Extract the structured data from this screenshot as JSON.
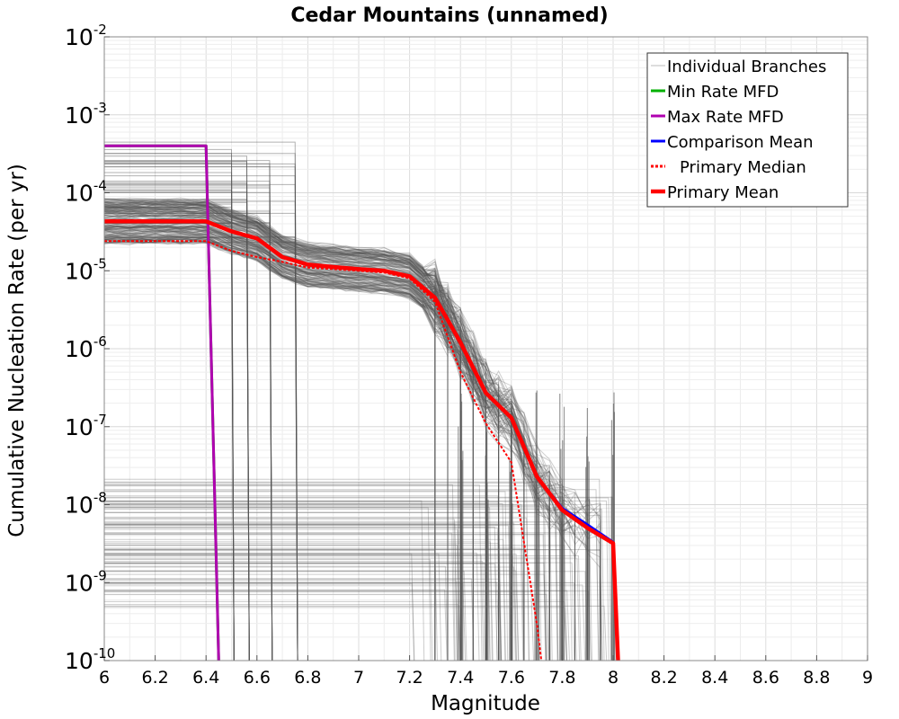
{
  "chart_data": {
    "type": "line",
    "title": "Cedar Mountains (unnamed)",
    "xlabel": "Magnitude",
    "ylabel": "Cumulative Nucleation Rate (per yr)",
    "xlim": [
      6,
      9
    ],
    "ylim": [
      1e-10,
      0.01
    ],
    "yscale": "log",
    "grid": true,
    "legend_position": "top-right",
    "x_ticks": [
      "6",
      "6.2",
      "6.4",
      "6.6",
      "6.8",
      "7",
      "7.2",
      "7.4",
      "7.6",
      "7.8",
      "8",
      "8.2",
      "8.4",
      "8.6",
      "8.8",
      "9"
    ],
    "y_ticks": [
      {
        "base": "10",
        "exp": "-2"
      },
      {
        "base": "10",
        "exp": "-3"
      },
      {
        "base": "10",
        "exp": "-4"
      },
      {
        "base": "10",
        "exp": "-5"
      },
      {
        "base": "10",
        "exp": "-6"
      },
      {
        "base": "10",
        "exp": "-7"
      },
      {
        "base": "10",
        "exp": "-8"
      },
      {
        "base": "10",
        "exp": "-9"
      },
      {
        "base": "10",
        "exp": "-10"
      }
    ],
    "series": [
      {
        "name": "Min Rate MFD",
        "color": "#00b000",
        "style": "solid",
        "x": [
          6.0,
          6.4,
          6.45
        ],
        "y": [
          0.0004,
          0.0004,
          1e-10
        ]
      },
      {
        "name": "Max Rate MFD",
        "color": "#b000b0",
        "style": "solid",
        "x": [
          6.0,
          6.4,
          6.45
        ],
        "y": [
          0.0004,
          0.0004,
          1e-10
        ]
      },
      {
        "name": "Comparison Mean",
        "color": "#0000ff",
        "style": "solid",
        "x": [
          6.0,
          6.4,
          6.5,
          6.6,
          6.7,
          6.8,
          6.9,
          7.0,
          7.1,
          7.2,
          7.3,
          7.4,
          7.5,
          7.6,
          7.7,
          7.8,
          7.9,
          8.0,
          8.02
        ],
        "y": [
          4.3e-05,
          4.3e-05,
          3.2e-05,
          2.6e-05,
          1.5e-05,
          1.2e-05,
          1.12e-05,
          1.05e-05,
          1e-05,
          8.5e-06,
          4.5e-06,
          1.2e-06,
          2.7e-07,
          1.3e-07,
          2.3e-08,
          9e-09,
          5.5e-09,
          3.3e-09,
          1e-10
        ]
      },
      {
        "name": "Primary Median",
        "color": "#ff0000",
        "style": "dotted",
        "x": [
          6.0,
          6.4,
          6.5,
          6.6,
          6.7,
          6.8,
          6.9,
          7.0,
          7.1,
          7.2,
          7.3,
          7.4,
          7.5,
          7.6,
          7.7,
          7.72
        ],
        "y": [
          2.4e-05,
          2.4e-05,
          1.8e-05,
          1.5e-05,
          1.3e-05,
          1.1e-05,
          1.05e-05,
          1e-05,
          9.5e-06,
          8e-06,
          4e-06,
          5e-07,
          1.1e-07,
          3.5e-08,
          3e-10,
          1e-10
        ]
      },
      {
        "name": "Primary Mean",
        "color": "#ff0000",
        "style": "thick",
        "x": [
          6.0,
          6.4,
          6.5,
          6.6,
          6.7,
          6.8,
          6.9,
          7.0,
          7.1,
          7.2,
          7.3,
          7.4,
          7.5,
          7.6,
          7.7,
          7.8,
          7.9,
          8.0,
          8.02
        ],
        "y": [
          4.3e-05,
          4.3e-05,
          3.2e-05,
          2.6e-05,
          1.5e-05,
          1.2e-05,
          1.12e-05,
          1.05e-05,
          1e-05,
          8.5e-06,
          4.5e-06,
          1.2e-06,
          2.7e-07,
          1.3e-07,
          2.3e-08,
          8.5e-09,
          5e-09,
          3.2e-09,
          1e-10
        ]
      }
    ],
    "legend": [
      {
        "label": "Individual Branches",
        "color": "#bbbbbb",
        "style": "thin"
      },
      {
        "label": "Min Rate MFD",
        "color": "#00b000",
        "style": "solid"
      },
      {
        "label": "Max Rate MFD",
        "color": "#b000b0",
        "style": "solid"
      },
      {
        "label": "Comparison Mean",
        "color": "#0000ff",
        "style": "solid"
      },
      {
        "label": "Primary Median",
        "color": "#ff0000",
        "style": "dotted"
      },
      {
        "label": "Primary Mean",
        "color": "#ff0000",
        "style": "thick"
      }
    ],
    "branch_color": "#555555"
  }
}
